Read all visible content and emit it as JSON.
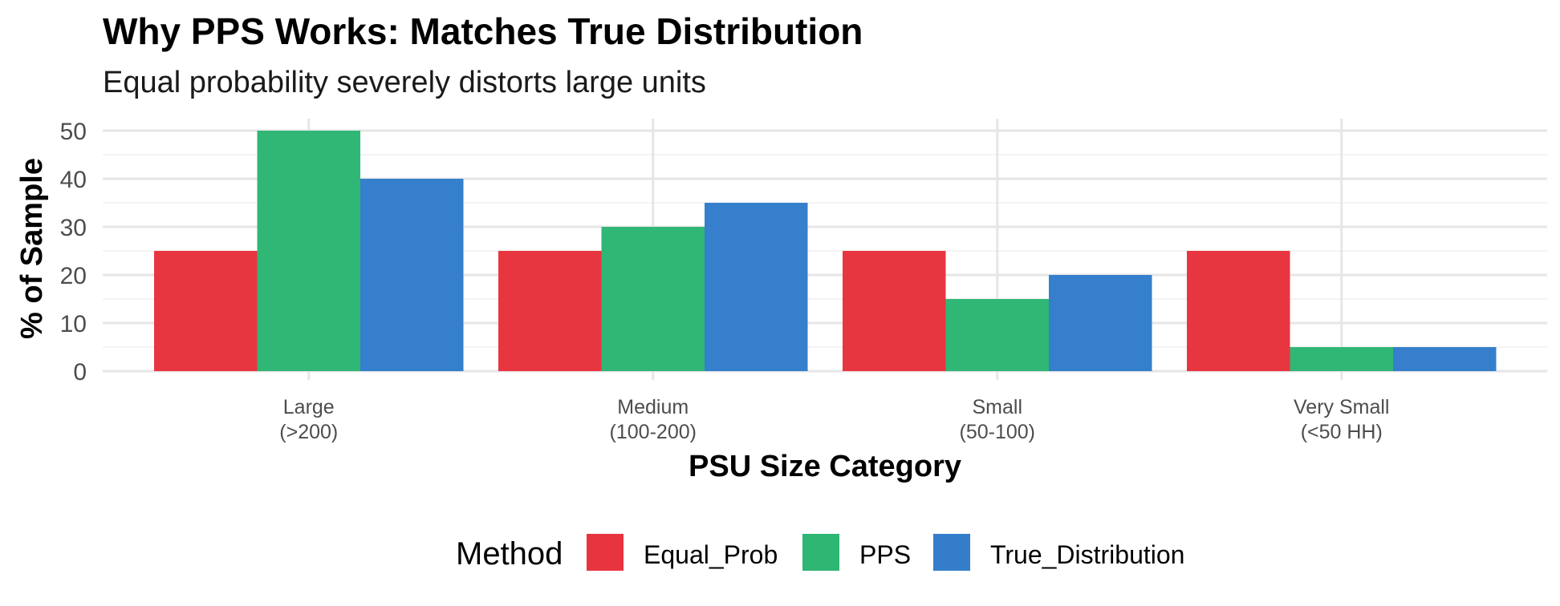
{
  "chart_data": {
    "type": "bar",
    "title": "Why PPS Works: Matches True Distribution",
    "subtitle": "Equal probability severely distorts large units",
    "xlabel": "PSU Size Category",
    "ylabel": "% of Sample",
    "categories": [
      [
        "Large",
        "(>200)"
      ],
      [
        "Medium",
        "(100-200)"
      ],
      [
        "Small",
        "(50-100)"
      ],
      [
        "Very Small",
        "(<50 HH)"
      ]
    ],
    "series": [
      {
        "name": "Equal_Prob",
        "color": "#e8343f",
        "values": [
          25,
          25,
          25,
          25
        ]
      },
      {
        "name": "PPS",
        "color": "#2eb673",
        "values": [
          50,
          30,
          15,
          5
        ]
      },
      {
        "name": "True_Distribution",
        "color": "#337dcb",
        "values": [
          40,
          35,
          20,
          5
        ]
      }
    ],
    "ylim": [
      0,
      52
    ],
    "yticks": [
      0,
      10,
      20,
      30,
      40,
      50
    ],
    "grid": true,
    "legend_title": "Method",
    "legend_position": "bottom"
  }
}
